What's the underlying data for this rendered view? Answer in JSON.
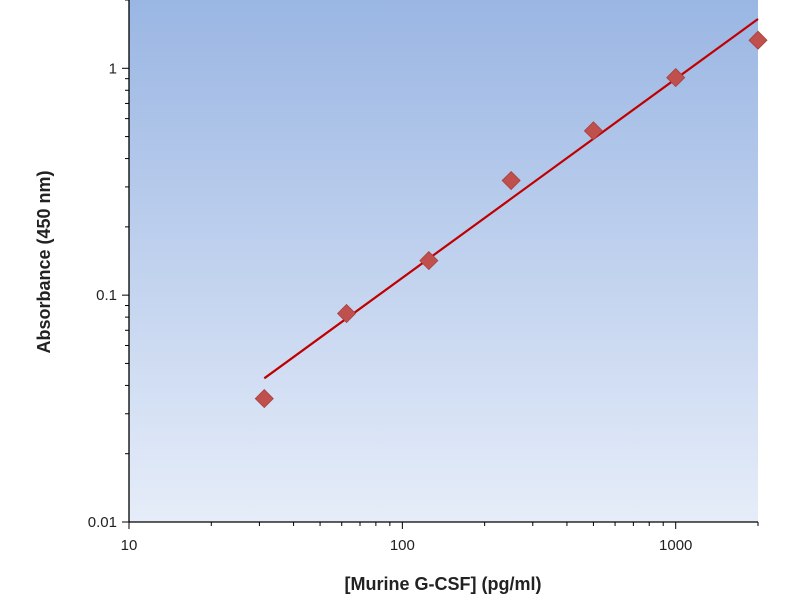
{
  "chart_data": {
    "type": "scatter",
    "title": "",
    "xlabel": "[Murine G-CSF] (pg/ml)",
    "ylabel": "Absorbance (450 nm)",
    "xscale": "log",
    "yscale": "log",
    "xlim": [
      10,
      2000
    ],
    "ylim": [
      0.01,
      2
    ],
    "x_ticks": [
      10,
      100,
      1000
    ],
    "x_tick_labels": [
      "10",
      "100",
      "1000"
    ],
    "y_ticks": [
      0.01,
      0.1,
      1
    ],
    "y_tick_labels": [
      "0.01",
      "0.1",
      "1"
    ],
    "grid": false,
    "legend": "none",
    "series": [
      {
        "kind": "points",
        "marker": "diamond",
        "color": "#c0504d",
        "points": [
          {
            "x": 31.25,
            "y": 0.035
          },
          {
            "x": 62.5,
            "y": 0.083
          },
          {
            "x": 125,
            "y": 0.142
          },
          {
            "x": 250,
            "y": 0.32
          },
          {
            "x": 500,
            "y": 0.53
          },
          {
            "x": 1000,
            "y": 0.91
          },
          {
            "x": 2000,
            "y": 1.33
          }
        ]
      },
      {
        "kind": "fit-line",
        "color": "#c00000",
        "points": [
          {
            "x": 31.25,
            "y": 0.043
          },
          {
            "x": 2000,
            "y": 1.65
          }
        ]
      }
    ],
    "colors": {
      "plot_bg_top": "#9ab6e3",
      "plot_bg_bottom": "#e6edf9",
      "axis": "#000000"
    }
  }
}
